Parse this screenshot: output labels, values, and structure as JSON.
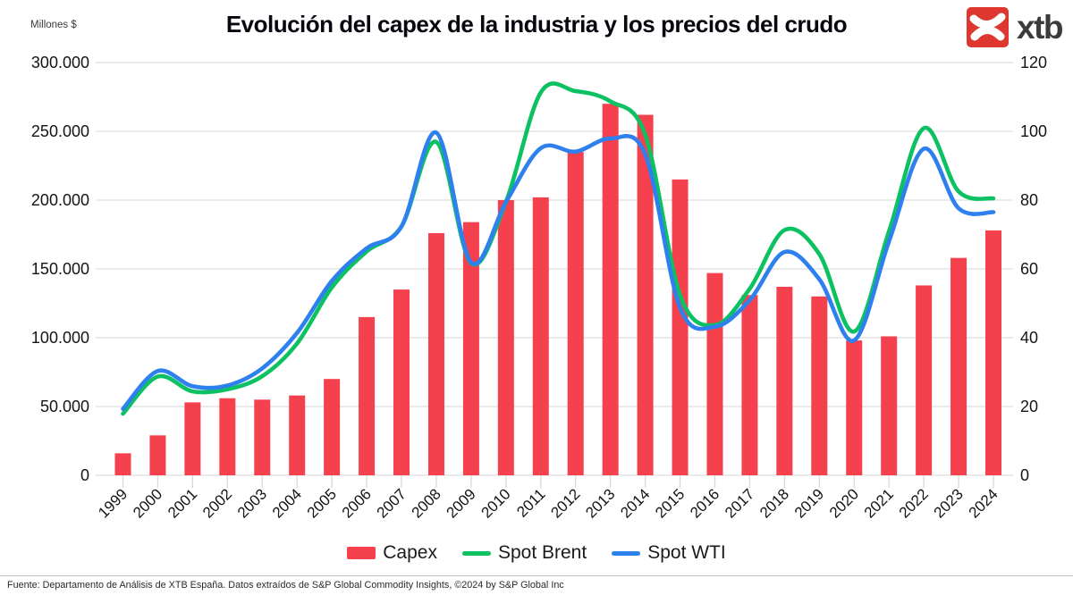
{
  "header": {
    "title": "Evolución del capex de la industria y los precios del crudo",
    "left_axis_unit": "Millones $",
    "logo_text": "xtb",
    "logo_color": "#de372f"
  },
  "footer": {
    "source": "Fuente: Departamento de Análisis de XTB España. Datos extraídos de  S&P Global Commodity Insights, ©2024 by S&P Global Inc"
  },
  "chart_data": {
    "type": "bar+line combo, dual axis",
    "title": "Evolución del capex de la industria y los precios del crudo",
    "grid": true,
    "legend_position": "bottom",
    "categories": [
      "1999",
      "2000",
      "2001",
      "2002",
      "2003",
      "2004",
      "2005",
      "2006",
      "2007",
      "2008",
      "2009",
      "2010",
      "2011",
      "2012",
      "2013",
      "2014",
      "2015",
      "2016",
      "2017",
      "2018",
      "2019",
      "2020",
      "2021",
      "2022",
      "2023",
      "2024"
    ],
    "bar_series": {
      "name": "Capex",
      "axis": "left",
      "color": "#f5404e",
      "values": [
        16000,
        29000,
        53000,
        56000,
        55000,
        58000,
        70000,
        115000,
        135000,
        176000,
        184000,
        200000,
        202000,
        235000,
        270000,
        262000,
        215000,
        147000,
        131000,
        137000,
        130000,
        98000,
        101000,
        138000,
        158000,
        178000
      ]
    },
    "line_series": [
      {
        "name": "Spot Brent",
        "axis": "right",
        "color": "#0cc161",
        "values": [
          17.9,
          28.7,
          24.4,
          25.0,
          28.8,
          38.3,
          54.6,
          65.1,
          72.4,
          96.9,
          61.7,
          79.5,
          111.3,
          111.7,
          108.7,
          99.0,
          52.4,
          43.7,
          54.2,
          71.3,
          64.3,
          41.8,
          70.9,
          100.9,
          82.5,
          80.5
        ]
      },
      {
        "name": "Spot WTI",
        "axis": "right",
        "color": "#2e80ee",
        "values": [
          19.3,
          30.3,
          25.9,
          26.1,
          31.1,
          41.4,
          56.5,
          66.0,
          72.3,
          99.6,
          61.9,
          79.4,
          95.1,
          94.1,
          97.9,
          93.3,
          48.7,
          43.2,
          50.9,
          64.9,
          57.0,
          39.2,
          68.0,
          94.9,
          77.6,
          76.5
        ]
      }
    ],
    "left_axis": {
      "label": "Millones $",
      "range": [
        0,
        300000
      ],
      "tick_labels": [
        "300.000",
        "250.000",
        "200.000",
        "150.000",
        "100.000",
        "50.000",
        "0"
      ]
    },
    "right_axis": {
      "range": [
        0,
        120
      ],
      "tick_labels": [
        "120",
        "100",
        "80",
        "60",
        "40",
        "20",
        "0"
      ]
    }
  }
}
